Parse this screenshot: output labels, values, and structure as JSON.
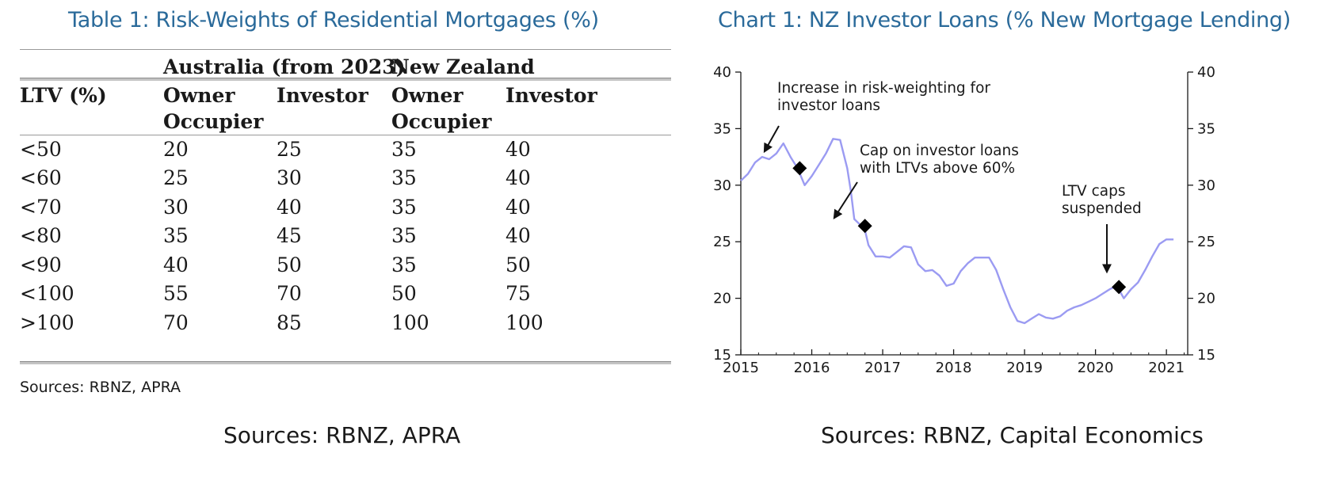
{
  "table": {
    "title": "Table 1: Risk-Weights of Residential Mortgages (%)",
    "group_headers": [
      "Australia (from 2023)",
      "New Zealand"
    ],
    "ltv_header": "LTV (%)",
    "column_headers": [
      [
        "Owner",
        "Occupier"
      ],
      [
        "Investor",
        ""
      ],
      [
        "Owner",
        "Occupier"
      ],
      [
        "Investor",
        ""
      ]
    ],
    "rows": [
      [
        "<50",
        "20",
        "25",
        "35",
        "40"
      ],
      [
        "<60",
        "25",
        "30",
        "35",
        "40"
      ],
      [
        "<70",
        "30",
        "40",
        "35",
        "40"
      ],
      [
        "<80",
        "35",
        "45",
        "35",
        "40"
      ],
      [
        "<90",
        "40",
        "50",
        "35",
        "50"
      ],
      [
        "<100",
        "55",
        "70",
        "50",
        "75"
      ],
      [
        ">100",
        "70",
        "85",
        "100",
        "100"
      ]
    ],
    "source_note": "Sources: RBNZ, APRA",
    "caption": "Sources: RBNZ, APRA"
  },
  "chart_data": {
    "type": "line",
    "title": "Chart 1: NZ Investor Loans (% New Mortgage Lending)",
    "xlabel": "",
    "ylabel": "",
    "xlim": [
      2015,
      2021.3
    ],
    "ylim": [
      15,
      40
    ],
    "x_ticks": [
      "2015",
      "2016",
      "2017",
      "2018",
      "2019",
      "2020",
      "2021"
    ],
    "y_ticks": [
      "15",
      "20",
      "25",
      "30",
      "35",
      "40"
    ],
    "series": [
      {
        "name": "NZ investor loans",
        "color": "#9b9bf2",
        "x": [
          2015.0,
          2015.1,
          2015.2,
          2015.3,
          2015.4,
          2015.5,
          2015.6,
          2015.7,
          2015.8,
          2015.9,
          2016.0,
          2016.1,
          2016.2,
          2016.3,
          2016.4,
          2016.5,
          2016.55,
          2016.6,
          2016.7,
          2016.75,
          2016.8,
          2016.9,
          2017.0,
          2017.1,
          2017.2,
          2017.3,
          2017.4,
          2017.5,
          2017.6,
          2017.7,
          2017.8,
          2017.9,
          2018.0,
          2018.1,
          2018.2,
          2018.3,
          2018.4,
          2018.5,
          2018.6,
          2018.7,
          2018.8,
          2018.9,
          2019.0,
          2019.1,
          2019.2,
          2019.3,
          2019.4,
          2019.5,
          2019.6,
          2019.7,
          2019.8,
          2019.9,
          2020.0,
          2020.1,
          2020.2,
          2020.3,
          2020.4,
          2020.5,
          2020.6,
          2020.7,
          2020.8,
          2020.9,
          2021.0,
          2021.1
        ],
        "y": [
          30.4,
          31.0,
          32.0,
          32.5,
          32.3,
          32.8,
          33.7,
          32.5,
          31.5,
          30.0,
          30.8,
          31.8,
          32.8,
          34.1,
          34.0,
          31.5,
          29.5,
          27.0,
          26.4,
          26.0,
          24.7,
          23.7,
          23.7,
          23.6,
          24.1,
          24.6,
          24.5,
          23.0,
          22.4,
          22.5,
          22.0,
          21.1,
          21.3,
          22.4,
          23.1,
          23.6,
          23.6,
          23.6,
          22.5,
          20.8,
          19.2,
          18.0,
          17.8,
          18.2,
          18.6,
          18.3,
          18.2,
          18.4,
          18.9,
          19.2,
          19.4,
          19.7,
          20.0,
          20.4,
          20.8,
          21.1,
          20.0,
          20.8,
          21.4,
          22.5,
          23.7,
          24.8,
          25.2,
          25.2
        ]
      }
    ],
    "markers": [
      {
        "x": 2015.83,
        "y": 31.5,
        "label": [
          "Increase in risk-weighting for",
          "investor loans"
        ]
      },
      {
        "x": 2016.75,
        "y": 26.4,
        "label": [
          "Cap on investor loans",
          "with LTVs above 60%"
        ]
      },
      {
        "x": 2020.33,
        "y": 21.0,
        "label": [
          "LTV caps",
          "suspended"
        ]
      }
    ],
    "caption": "Sources: RBNZ, Capital Economics"
  }
}
